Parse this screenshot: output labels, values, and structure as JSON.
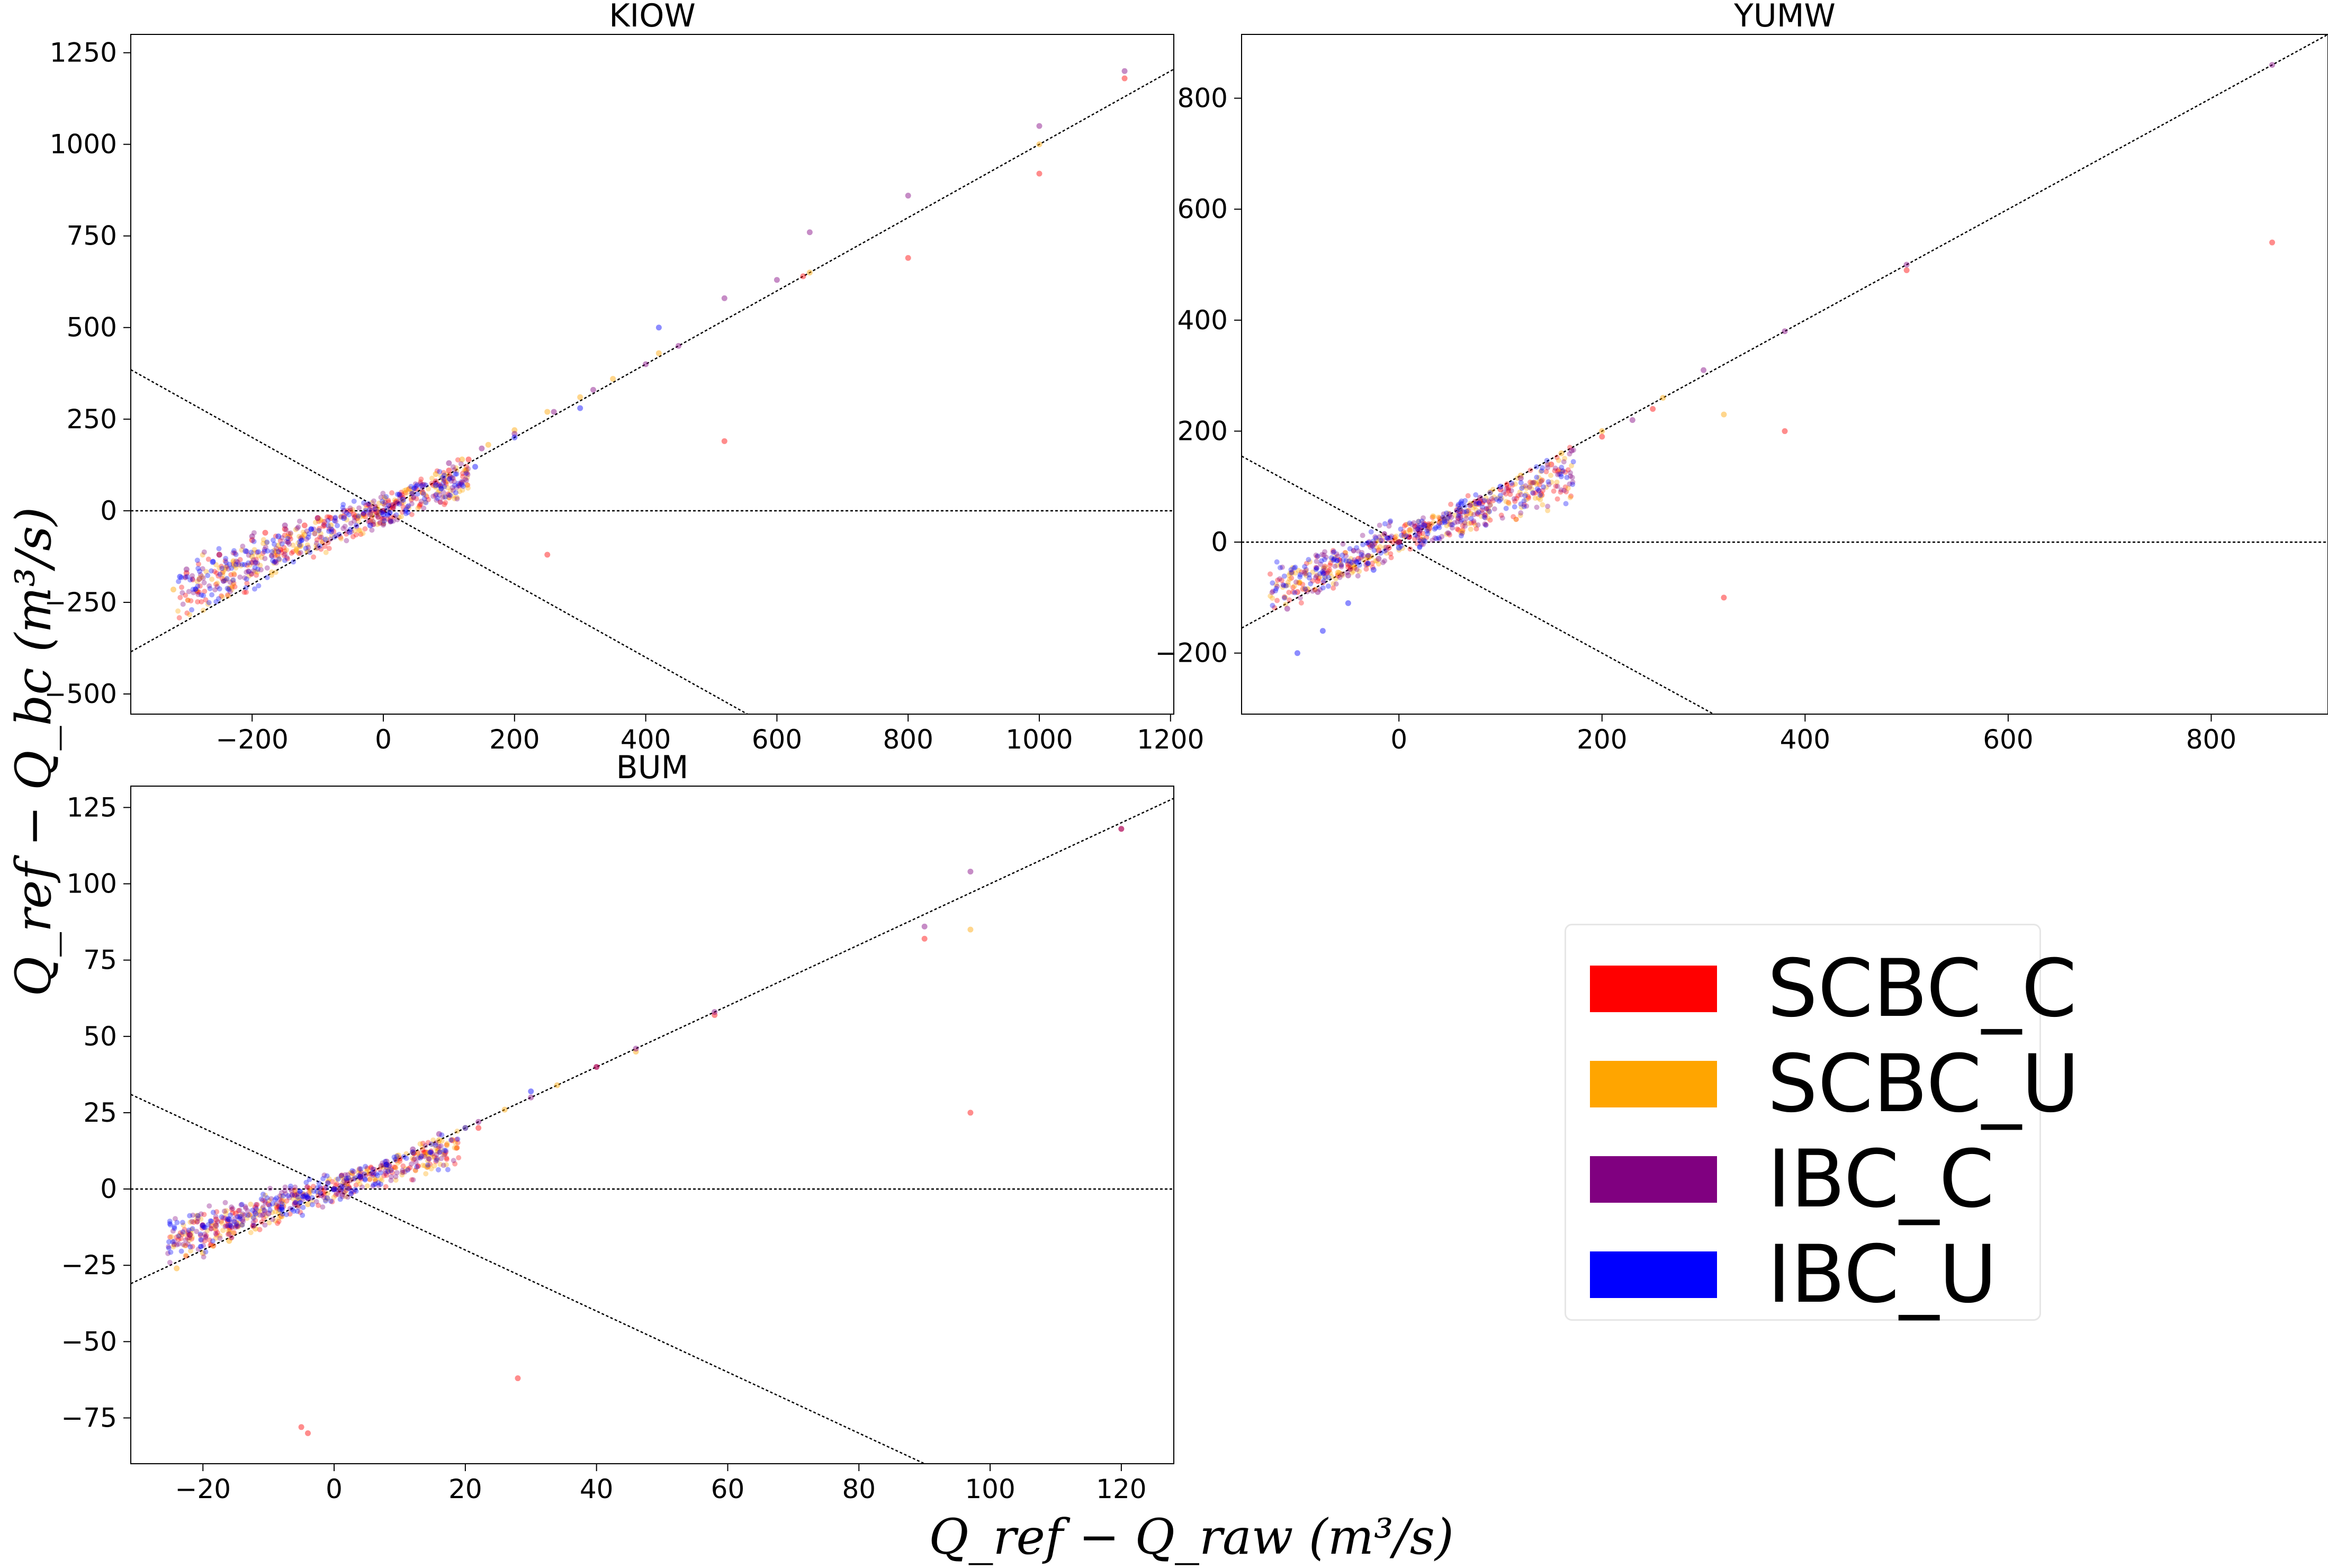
{
  "figure": {
    "xlabel": "Q_ref − Q_raw   (m³/s)",
    "ylabel": "Q_ref − Q_bc   (m³/s)"
  },
  "legend": [
    {
      "label": "SCBC_C",
      "color": "#ff0000"
    },
    {
      "label": "SCBC_U",
      "color": "#ffa500"
    },
    {
      "label": "IBC_C",
      "color": "#800080"
    },
    {
      "label": "IBC_U",
      "color": "#0000ff"
    }
  ],
  "chart_data": [
    {
      "type": "scatter",
      "title": "KIOW",
      "xlim": [
        -385,
        1205
      ],
      "ylim": [
        -555,
        1300
      ],
      "xticks": [
        -200,
        0,
        200,
        400,
        600,
        800,
        1000,
        1200
      ],
      "yticks": [
        -500,
        -250,
        0,
        250,
        500,
        750,
        1000,
        1250
      ],
      "reference_lines": [
        "y = x",
        "y = 0",
        "y = -x"
      ],
      "series": [
        {
          "name": "SCBC_C",
          "x": [
            -300,
            -250,
            -200,
            -150,
            -120,
            -100,
            -80,
            -60,
            -50,
            -40,
            -30,
            -20,
            -10,
            0,
            10,
            20,
            30,
            50,
            80,
            100,
            130,
            -180,
            -90,
            -45,
            15,
            60,
            250,
            520,
            640,
            800,
            1000,
            1130
          ],
          "y": [
            -170,
            -120,
            -80,
            -50,
            -40,
            -20,
            -20,
            -15,
            0,
            -20,
            -10,
            -30,
            -5,
            0,
            10,
            25,
            35,
            60,
            80,
            110,
            140,
            -60,
            -30,
            -10,
            15,
            50,
            -120,
            190,
            640,
            690,
            920,
            1180
          ]
        },
        {
          "name": "SCBC_U",
          "x": [
            -320,
            -280,
            -240,
            -200,
            -160,
            -120,
            -80,
            -40,
            0,
            40,
            80,
            120,
            160,
            200,
            250,
            300,
            350,
            420,
            650,
            1000
          ],
          "y": [
            -215,
            -185,
            -155,
            -125,
            -95,
            -65,
            -40,
            -15,
            20,
            60,
            100,
            140,
            180,
            220,
            270,
            310,
            360,
            430,
            650,
            1000
          ]
        },
        {
          "name": "IBC_C",
          "x": [
            -300,
            -250,
            -200,
            -150,
            -100,
            -60,
            -20,
            0,
            20,
            60,
            100,
            150,
            200,
            260,
            320,
            400,
            450,
            520,
            600,
            650,
            800,
            1000,
            1130
          ],
          "y": [
            -160,
            -120,
            -70,
            -40,
            -20,
            0,
            -10,
            0,
            20,
            70,
            130,
            170,
            210,
            270,
            330,
            400,
            450,
            580,
            630,
            760,
            860,
            1050,
            1200
          ]
        },
        {
          "name": "IBC_U",
          "x": [
            -310,
            -260,
            -210,
            -160,
            -110,
            -60,
            -20,
            0,
            30,
            80,
            140,
            200,
            300,
            420
          ],
          "y": [
            -180,
            -140,
            -110,
            -70,
            -50,
            -20,
            -40,
            -10,
            30,
            70,
            120,
            200,
            280,
            500
          ]
        }
      ]
    },
    {
      "type": "scatter",
      "title": "YUMW",
      "xlim": [
        -155,
        915
      ],
      "ylim": [
        -310,
        915
      ],
      "xticks": [
        0,
        200,
        400,
        600,
        800
      ],
      "yticks": [
        -200,
        0,
        200,
        400,
        600,
        800
      ],
      "reference_lines": [
        "y = x",
        "y = 0",
        "y = -x"
      ],
      "series": [
        {
          "name": "SCBC_C",
          "x": [
            -100,
            -80,
            -60,
            -50,
            -40,
            -30,
            -20,
            -10,
            0,
            10,
            20,
            30,
            40,
            60,
            80,
            100,
            150,
            200,
            250,
            320,
            380,
            500,
            860
          ],
          "y": [
            -90,
            -70,
            -60,
            -40,
            -30,
            -25,
            -15,
            -10,
            0,
            10,
            15,
            25,
            35,
            55,
            75,
            95,
            140,
            190,
            240,
            -100,
            200,
            490,
            540
          ]
        },
        {
          "name": "SCBC_U",
          "x": [
            -90,
            -60,
            -30,
            0,
            30,
            60,
            90,
            120,
            160,
            200,
            260,
            320
          ],
          "y": [
            -85,
            -55,
            -28,
            0,
            30,
            60,
            90,
            120,
            160,
            200,
            260,
            230
          ]
        },
        {
          "name": "IBC_C",
          "x": [
            -110,
            -80,
            -50,
            -20,
            0,
            20,
            50,
            80,
            120,
            170,
            230,
            300,
            380,
            500,
            860
          ],
          "y": [
            -120,
            -90,
            -60,
            -30,
            0,
            20,
            50,
            80,
            115,
            165,
            220,
            310,
            380,
            500,
            860
          ]
        },
        {
          "name": "IBC_U",
          "x": [
            -100,
            -75,
            -50,
            -25,
            0,
            25,
            60,
            100
          ],
          "y": [
            -200,
            -160,
            -110,
            -50,
            -10,
            30,
            60,
            100
          ]
        }
      ]
    },
    {
      "type": "scatter",
      "title": "BUM",
      "xlim": [
        -31,
        128
      ],
      "ylim": [
        -90,
        132
      ],
      "xticks": [
        -20,
        0,
        20,
        40,
        60,
        80,
        100,
        120
      ],
      "yticks": [
        -75,
        -50,
        -25,
        0,
        25,
        50,
        75,
        100,
        125
      ],
      "reference_lines": [
        "y = x",
        "y = 0",
        "y = -x"
      ],
      "series": [
        {
          "name": "SCBC_C",
          "x": [
            -22,
            -18,
            -15,
            -12,
            -10,
            -8,
            -6,
            -4,
            -2,
            0,
            2,
            4,
            6,
            8,
            10,
            14,
            18,
            22,
            28,
            -5,
            -4,
            40,
            58,
            90,
            97,
            120
          ],
          "y": [
            -15,
            -10,
            -8,
            -6,
            -5,
            -4,
            -2,
            -3,
            0,
            0,
            2,
            4,
            5,
            8,
            10,
            12,
            16,
            20,
            -62,
            -78,
            -80,
            40,
            57,
            82,
            25,
            118
          ]
        },
        {
          "name": "SCBC_U",
          "x": [
            -24,
            -20,
            -16,
            -12,
            -8,
            -4,
            0,
            4,
            8,
            12,
            16,
            20,
            26,
            34,
            46,
            97
          ],
          "y": [
            -26,
            -21,
            -17,
            -13,
            -9,
            -5,
            0,
            4,
            8,
            12,
            16,
            20,
            26,
            34,
            45,
            85
          ]
        },
        {
          "name": "IBC_C",
          "x": [
            -22,
            -18,
            -14,
            -10,
            -6,
            -2,
            0,
            4,
            8,
            12,
            16,
            22,
            30,
            40,
            46,
            58,
            90,
            97,
            120
          ],
          "y": [
            -15,
            -12,
            -10,
            -8,
            -5,
            -2,
            0,
            4,
            9,
            13,
            18,
            22,
            30,
            40,
            46,
            58,
            86,
            104,
            118
          ]
        },
        {
          "name": "IBC_U",
          "x": [
            -20,
            -16,
            -12,
            -8,
            -4,
            0,
            4,
            8,
            12,
            20,
            30
          ],
          "y": [
            -12,
            -10,
            -8,
            -6,
            -3,
            0,
            4,
            8,
            12,
            20,
            32
          ]
        }
      ]
    }
  ]
}
